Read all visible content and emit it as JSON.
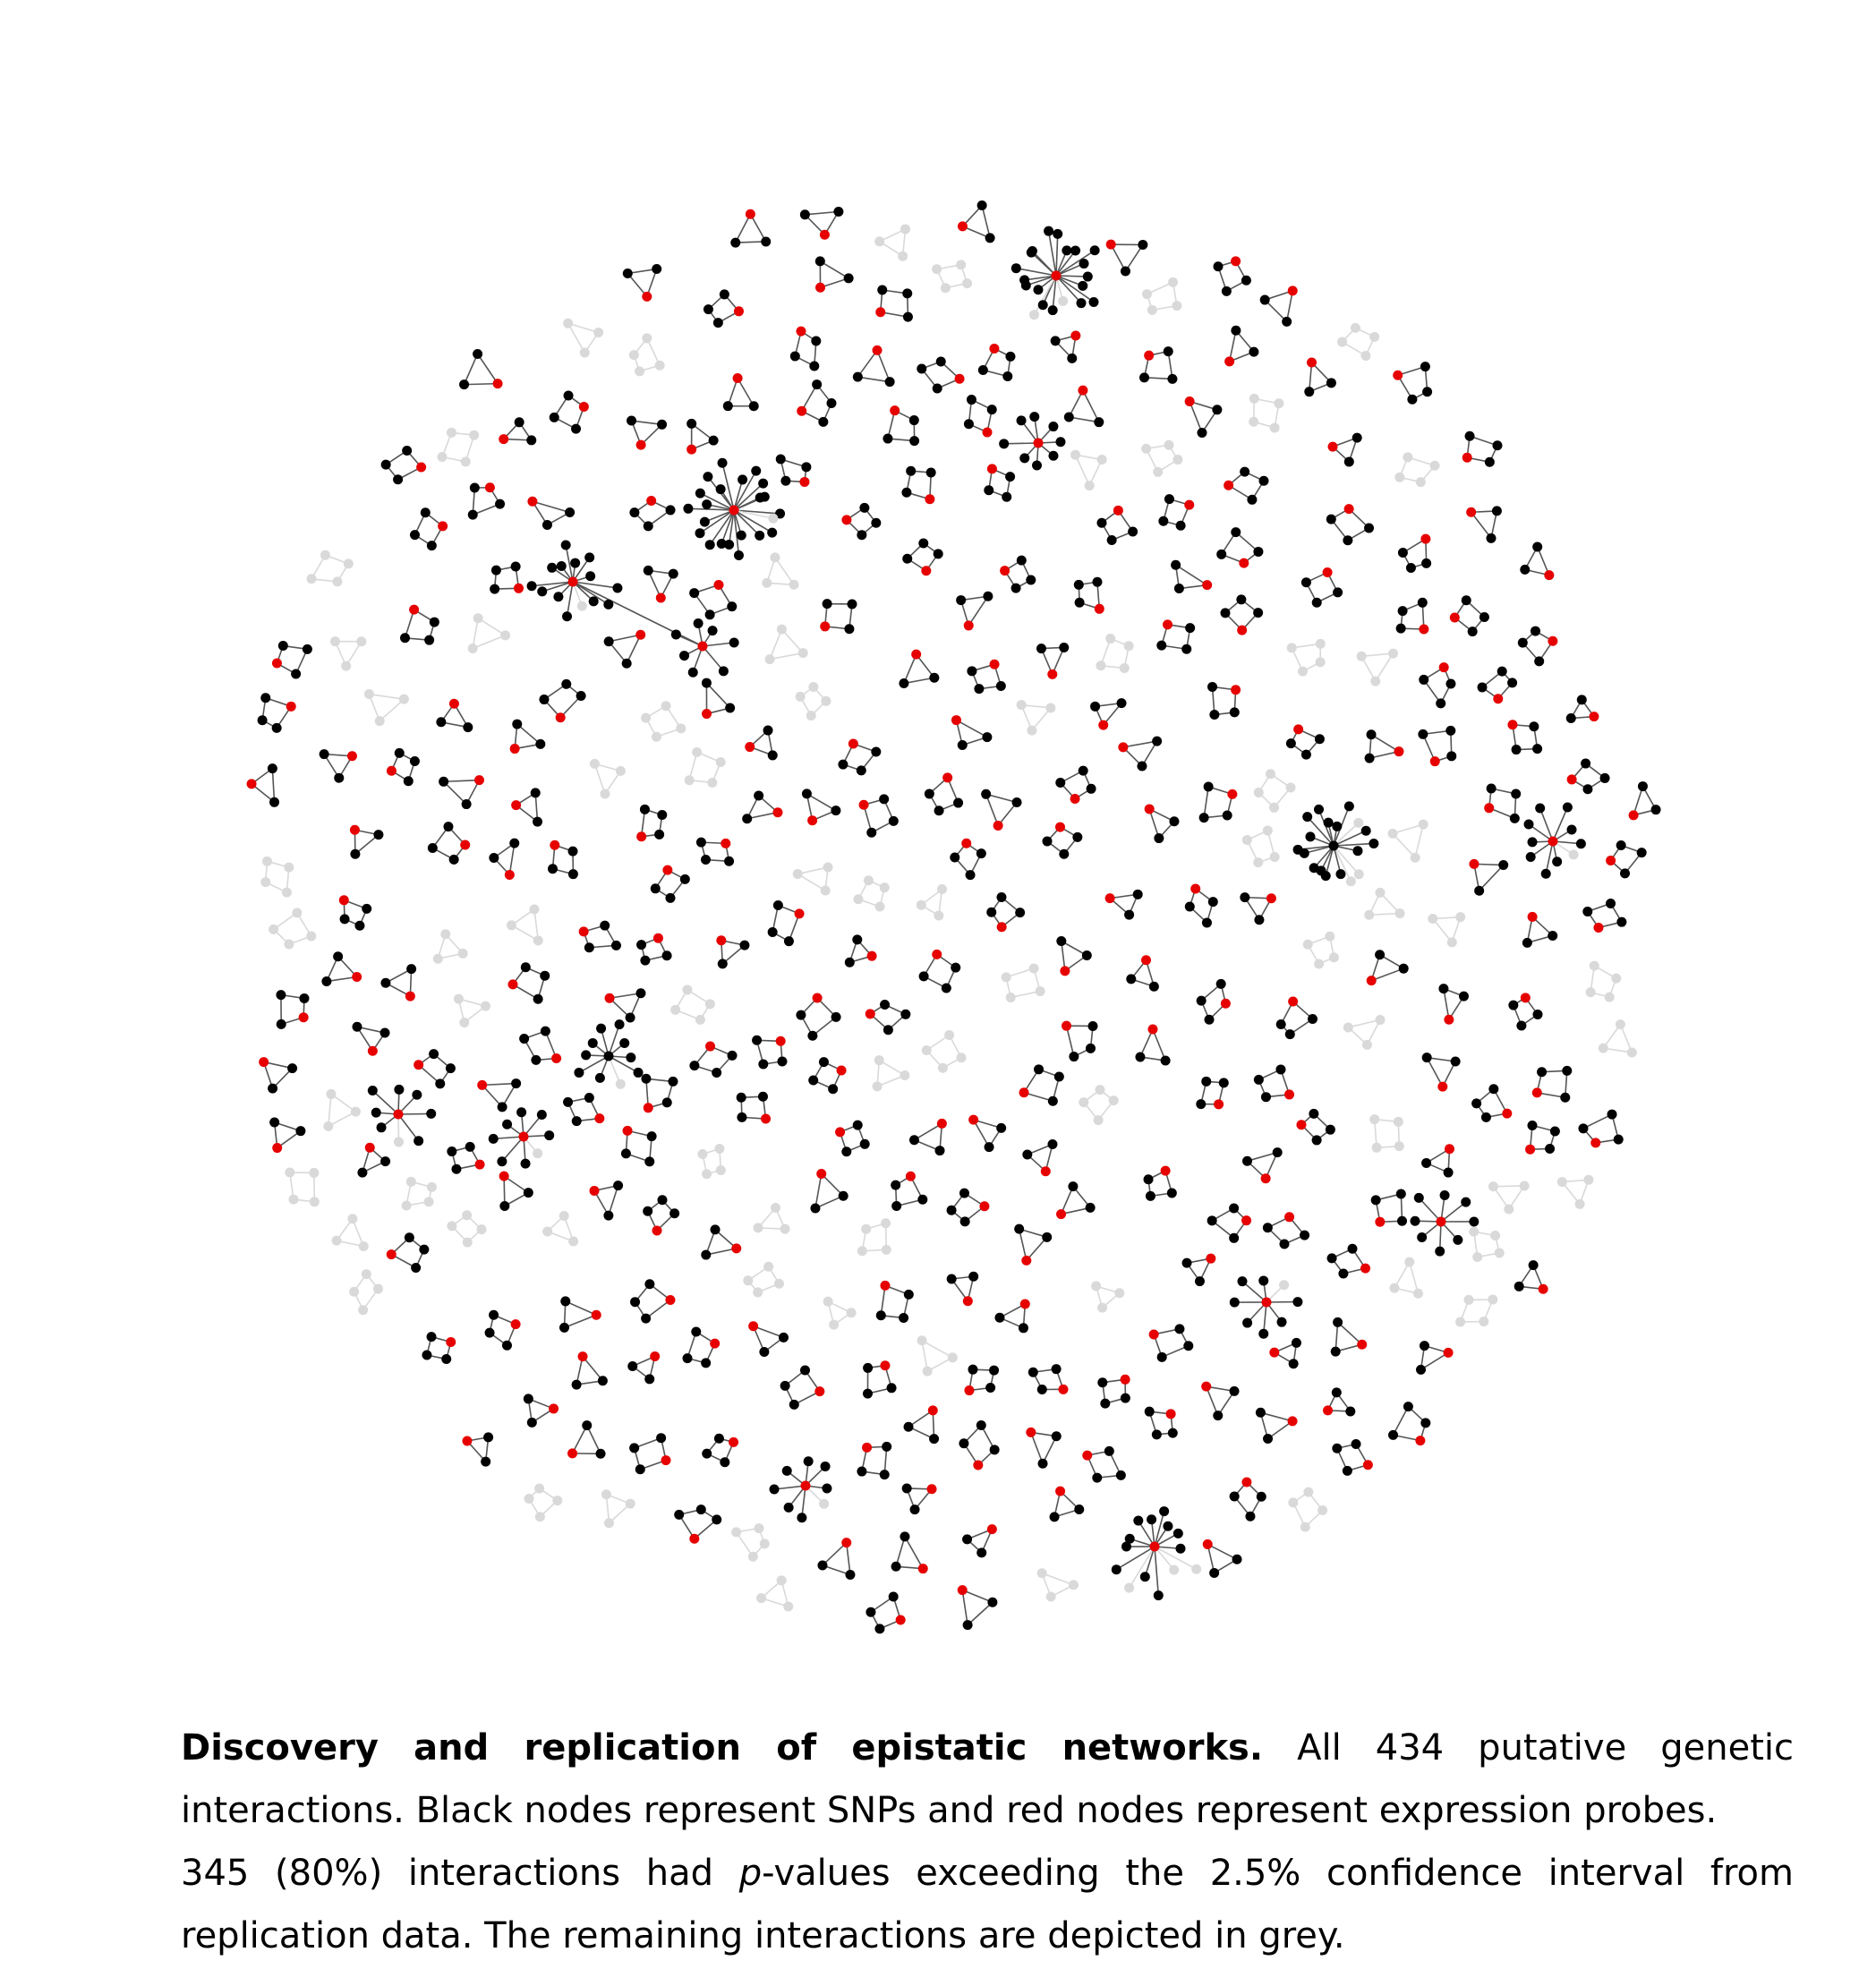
{
  "figure": {
    "colors": {
      "snp_node": "#000000",
      "probe_node": "#e60000",
      "unreplicated_node": "#d9d9d9",
      "edge": "#555555",
      "unreplicated_edge": "#d9d9d9"
    },
    "node_types": [
      "SNP",
      "expression probe"
    ]
  },
  "caption": {
    "title": "Discovery and replication of epistatic networks.",
    "line1_rest": " All 434 putative genetic interactions. Black nodes represent SNPs and red nodes represent expression probes.",
    "line2_pre": "345 (80%) interactions had ",
    "line2_ital": "p",
    "line2_post": "-values exceeding the 2.5% confidence interval from replication data. The remaining interactions are depicted in grey."
  }
}
